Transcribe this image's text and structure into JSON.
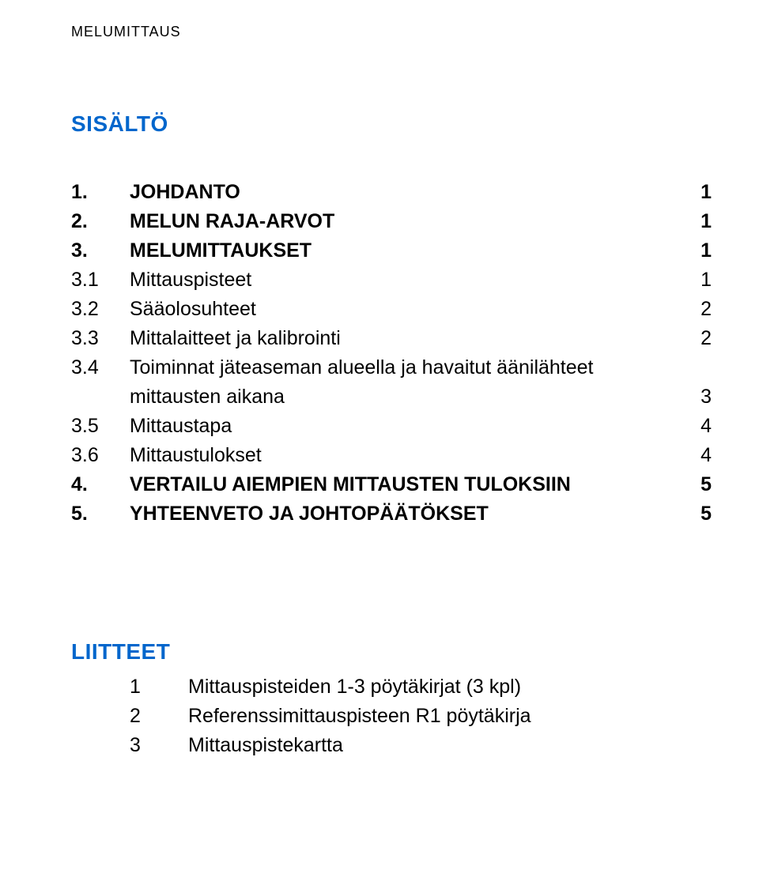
{
  "header": {
    "title": "MELUMITTAUS"
  },
  "toc": {
    "heading": "SISÄLTÖ",
    "items": [
      {
        "num": "1.",
        "label": "JOHDANTO",
        "page": "1",
        "bold": true
      },
      {
        "num": "2.",
        "label": "MELUN RAJA-ARVOT",
        "page": "1",
        "bold": true
      },
      {
        "num": "3.",
        "label": "MELUMITTAUKSET",
        "page": "1",
        "bold": true
      },
      {
        "num": "3.1",
        "label": "Mittauspisteet",
        "page": "1",
        "bold": false
      },
      {
        "num": "3.2",
        "label": "Sääolosuhteet",
        "page": "2",
        "bold": false
      },
      {
        "num": "3.3",
        "label": "Mittalaitteet ja kalibrointi",
        "page": "2",
        "bold": false
      },
      {
        "num": "3.4",
        "label": "Toiminnat jäteaseman alueella ja havaitut äänilähteet",
        "label2": "mittausten aikana",
        "page": "3",
        "bold": false
      },
      {
        "num": "3.5",
        "label": "Mittaustapa",
        "page": "4",
        "bold": false
      },
      {
        "num": "3.6",
        "label": "Mittaustulokset",
        "page": "4",
        "bold": false
      },
      {
        "num": "4.",
        "label": "VERTAILU AIEMPIEN MITTAUSTEN TULOKSIIN",
        "page": "5",
        "bold": true
      },
      {
        "num": "5.",
        "label": "YHTEENVETO JA JOHTOPÄÄTÖKSET",
        "page": "5",
        "bold": true
      }
    ]
  },
  "appendices": {
    "heading": "LIITTEET",
    "items": [
      {
        "num": "1",
        "label": "Mittauspisteiden 1-3 pöytäkirjat (3 kpl)"
      },
      {
        "num": "2",
        "label": "Referenssimittauspisteen R1 pöytäkirja"
      },
      {
        "num": "3",
        "label": "Mittauspistekartta"
      }
    ]
  },
  "colors": {
    "heading": "#0066cc",
    "text": "#000000",
    "background": "#ffffff"
  },
  "typography": {
    "body_font": "Arial",
    "header_size_pt": 14,
    "heading_size_pt": 21,
    "toc_size_pt": 19
  }
}
